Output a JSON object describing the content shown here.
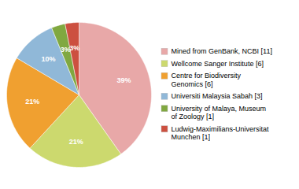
{
  "chart_data": {
    "type": "pie",
    "categories": [
      "Mined from GenBank, NCBI [11]",
      "Wellcome Sanger Institute [6]",
      "Centre for Biodiversity\nGenomics [6]",
      "Universiti Malaysia Sabah [3]",
      "University of Malaya, Museum\nof Zoology [1]",
      "Ludwig-Maximilians-Universitat\nMunchen [1]"
    ],
    "values": [
      39,
      21,
      21,
      10,
      3,
      3
    ],
    "value_labels": [
      "39%",
      "21%",
      "21%",
      "10%",
      "3%",
      "3%"
    ],
    "colors": [
      "#e8a8a8",
      "#ccd96e",
      "#f0a030",
      "#90b8d8",
      "#80a840",
      "#cc5040"
    ],
    "data_labels": true,
    "legend": "right"
  }
}
